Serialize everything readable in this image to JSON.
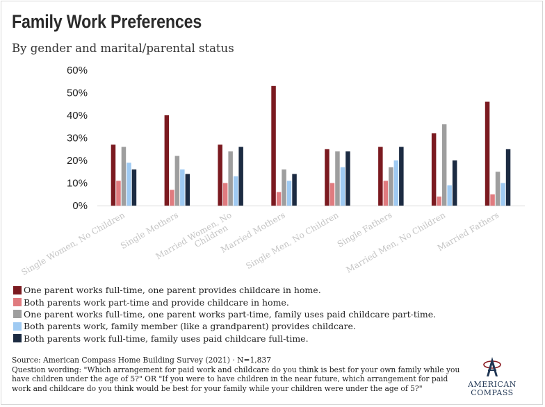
{
  "title": "Family Work Preferences",
  "subtitle": "By gender and marital/parental status",
  "chart_data": {
    "type": "bar",
    "title": "Family Work Preferences",
    "subtitle": "By gender and marital/parental status",
    "xlabel": "",
    "ylabel": "",
    "ylim": [
      0,
      60
    ],
    "yticks": [
      "0%",
      "10%",
      "20%",
      "30%",
      "40%",
      "50%",
      "60%"
    ],
    "grid": false,
    "legend_position": "bottom",
    "categories": [
      "Single Women, No Children",
      "Single Mothers",
      "Married Women, No Children",
      "Married Mothers",
      "Single Men, No Children",
      "Single Fathers",
      "Married Men, No Children",
      "Married Fathers"
    ],
    "category_labels": [
      [
        "Single Women, No Children"
      ],
      [
        "Single Mothers"
      ],
      [
        "Married Women, No",
        "Children"
      ],
      [
        "Married Mothers"
      ],
      [
        "Single Men, No Children"
      ],
      [
        "Single Fathers"
      ],
      [
        "Married Men, No Children"
      ],
      [
        "Married Fathers"
      ]
    ],
    "series": [
      {
        "name": "One parent works full-time, one parent provides childcare in home.",
        "color": "#7b1a20",
        "values": [
          27,
          40,
          27,
          53,
          25,
          26,
          32,
          46
        ]
      },
      {
        "name": "Both parents work part-time and provide childcare in home.",
        "color": "#e07b7f",
        "values": [
          11,
          7,
          10,
          6,
          10,
          11,
          4,
          5
        ]
      },
      {
        "name": "One parent works full-time, one parent works part-time, family uses paid childcare part-time.",
        "color": "#9e9e9e",
        "values": [
          26,
          22,
          24,
          16,
          24,
          17,
          36,
          15
        ]
      },
      {
        "name": "Both parents work, family member (like a grandparent) provides childcare.",
        "color": "#9fcaf2",
        "values": [
          19,
          16,
          13,
          11,
          17,
          20,
          9,
          10
        ]
      },
      {
        "name": "Both parents work full-time, family uses paid childcare full-time.",
        "color": "#1c2b42",
        "values": [
          16,
          14,
          26,
          14,
          24,
          26,
          20,
          25
        ]
      }
    ]
  },
  "footer": {
    "source": "Source: American Compass Home Building Survey (2021) · N=1,837",
    "question_lines": [
      "Question wording: \"Which arrangement for paid work and childcare do you think is best for your own family while you",
      "have children under the age of 5?\" OR \"If you were to have children in the near future, which arrangement for paid",
      "work and childcare do you think would be best for your family while your children were under the age of 5?\""
    ]
  },
  "logo": {
    "line1": "AMERICAN",
    "line2": "COMPASS",
    "color": "#1f3553",
    "accent": "#8b1c22"
  }
}
